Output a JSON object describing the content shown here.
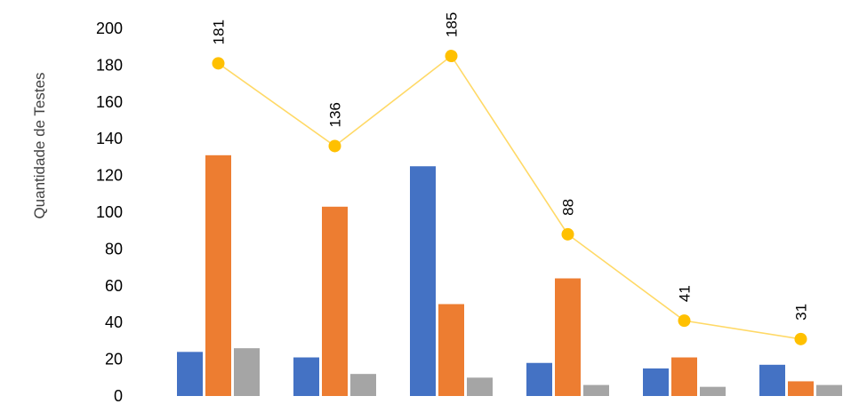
{
  "chart_data": {
    "type": "bar",
    "title": "",
    "xlabel": "",
    "ylabel": "Quantidade de Testes",
    "ylim": [
      0,
      200
    ],
    "yticks": [
      0,
      20,
      40,
      60,
      80,
      100,
      120,
      140,
      160,
      180,
      200
    ],
    "grid": false,
    "legend": "none",
    "categories": [
      "",
      "",
      "",
      "",
      "",
      ""
    ],
    "series": [
      {
        "type": "bar",
        "color": "#4472C4",
        "values": [
          24,
          21,
          125,
          18,
          15,
          17
        ]
      },
      {
        "type": "bar",
        "color": "#ED7D31",
        "values": [
          131,
          103,
          50,
          64,
          21,
          8
        ]
      },
      {
        "type": "bar",
        "color": "#A5A5A5",
        "values": [
          26,
          12,
          10,
          6,
          5,
          6
        ]
      },
      {
        "type": "line",
        "color": "#FFC000",
        "line_color": "#FFD966",
        "values": [
          181,
          136,
          185,
          88,
          41,
          31
        ],
        "data_labels": [
          "181",
          "136",
          "185",
          "88",
          "41",
          "31"
        ]
      }
    ]
  }
}
